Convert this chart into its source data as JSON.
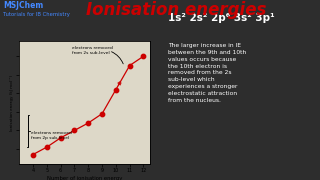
{
  "title": "Ionisation energies",
  "xlabel": "Number of ionisation energy",
  "ylabel": "Ionisation energy (kJ mol⁻¹)",
  "background_color": "#2d2d2d",
  "plot_bg_color": "#ddd8c8",
  "x": [
    4,
    5,
    6,
    7,
    8,
    9,
    10,
    11,
    12
  ],
  "y_log": [
    3.7,
    4.1,
    4.6,
    5.0,
    5.4,
    5.9,
    7.2,
    8.5,
    9.0
  ],
  "marker_color": "#cc0000",
  "line_color": "#cc0000",
  "anno2p_text": "electrons removed\nfrom 2p sub-level",
  "anno2s_text": "electrons removed\nfrom 2s sub-level",
  "xlim": [
    3,
    12.5
  ],
  "ylim": [
    3.2,
    9.8
  ],
  "xticks": [
    4,
    5,
    6,
    7,
    8,
    9,
    10,
    11,
    12
  ],
  "title_color": "#cc0000",
  "msj_color": "#4488ff",
  "text_color": "#ffffff",
  "electron_config": "1s² 2s² 2p⁶ 3s² 3p¹",
  "body_text": "The larger increase in IE\nbetween the 9th and 10th\nvalues occurs because\nthe 10th electron is\nremoved from the 2s\nsub-level which\nexperiences a stronger\nelectrostatic attraction\nfrom the nucleus."
}
